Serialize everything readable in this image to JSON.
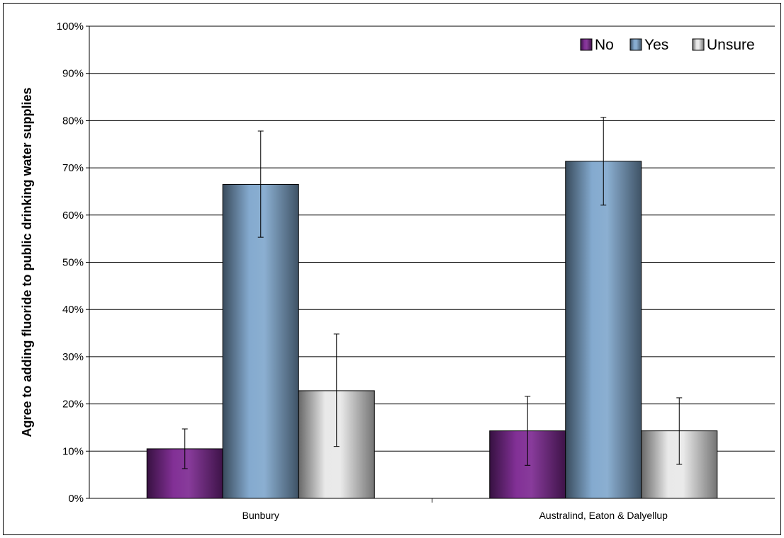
{
  "chart_data": {
    "type": "bar",
    "title": "",
    "xlabel": "",
    "ylabel": "Agree to adding fluoride to public drinking water supplies",
    "ylim": [
      0,
      100
    ],
    "yticks": [
      "0%",
      "10%",
      "20%",
      "30%",
      "40%",
      "50%",
      "60%",
      "70%",
      "80%",
      "90%",
      "100%"
    ],
    "grid": true,
    "legend": "top-right",
    "categories": [
      "Bunbury",
      "Australind, Eaton & Dalyellup"
    ],
    "series": [
      {
        "name": "No",
        "color": "#7b2590",
        "values": [
          10.5,
          14.3
        ],
        "err_low": [
          6.3,
          7.0
        ],
        "err_high": [
          14.7,
          21.6
        ]
      },
      {
        "name": "Yes",
        "color": "#7ea6cc",
        "values": [
          66.5,
          71.4
        ],
        "err_low": [
          55.3,
          62.1
        ],
        "err_high": [
          77.8,
          80.7
        ]
      },
      {
        "name": "Unsure",
        "color": "#e8e8e8",
        "values": [
          22.8,
          14.3
        ],
        "err_low": [
          11.0,
          7.2
        ],
        "err_high": [
          34.8,
          21.3
        ]
      }
    ]
  }
}
